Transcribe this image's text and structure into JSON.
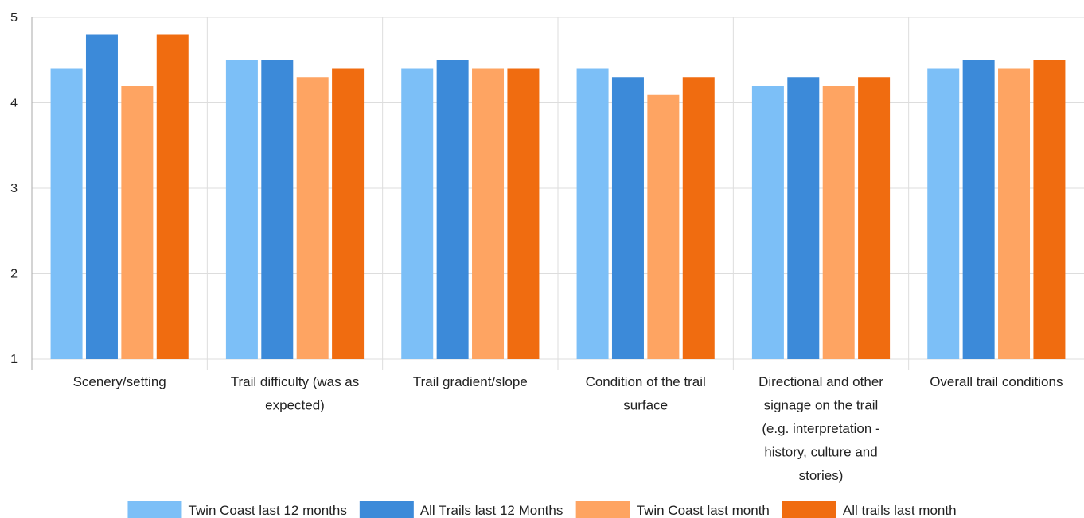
{
  "chart_data": {
    "type": "bar",
    "title": "",
    "xlabel": "",
    "ylabel": "",
    "ylim": [
      1,
      5
    ],
    "yticks": [
      1,
      2,
      3,
      4,
      5
    ],
    "grid": true,
    "legend_position": "bottom",
    "categories": [
      "Scenery/setting",
      "Trail difficulty (was as expected)",
      "Trail gradient/slope",
      "Condition of the trail surface",
      "Directional and other signage on the trail (e.g. interpretation - history, culture and stories)",
      "Overall trail conditions"
    ],
    "category_label_lines": [
      [
        "Scenery/setting"
      ],
      [
        "Trail difficulty (was as",
        "expected)"
      ],
      [
        "Trail gradient/slope"
      ],
      [
        "Condition of the trail",
        "surface"
      ],
      [
        "Directional and other",
        "signage on the trail",
        "(e.g. interpretation -",
        "history, culture and",
        "stories)"
      ],
      [
        "Overall trail conditions"
      ]
    ],
    "series": [
      {
        "name": "Twin Coast last 12 months",
        "color": "#7cbff7",
        "values": [
          4.4,
          4.5,
          4.4,
          4.4,
          4.2,
          4.4
        ]
      },
      {
        "name": "All Trails last 12 Months",
        "color": "#3c8ad9",
        "values": [
          4.8,
          4.5,
          4.5,
          4.3,
          4.3,
          4.5
        ]
      },
      {
        "name": "Twin Coast last month",
        "color": "#fea462",
        "values": [
          4.2,
          4.3,
          4.4,
          4.1,
          4.2,
          4.4
        ]
      },
      {
        "name": "All trails last month",
        "color": "#f06c10",
        "values": [
          4.8,
          4.4,
          4.4,
          4.3,
          4.3,
          4.5
        ]
      }
    ]
  }
}
